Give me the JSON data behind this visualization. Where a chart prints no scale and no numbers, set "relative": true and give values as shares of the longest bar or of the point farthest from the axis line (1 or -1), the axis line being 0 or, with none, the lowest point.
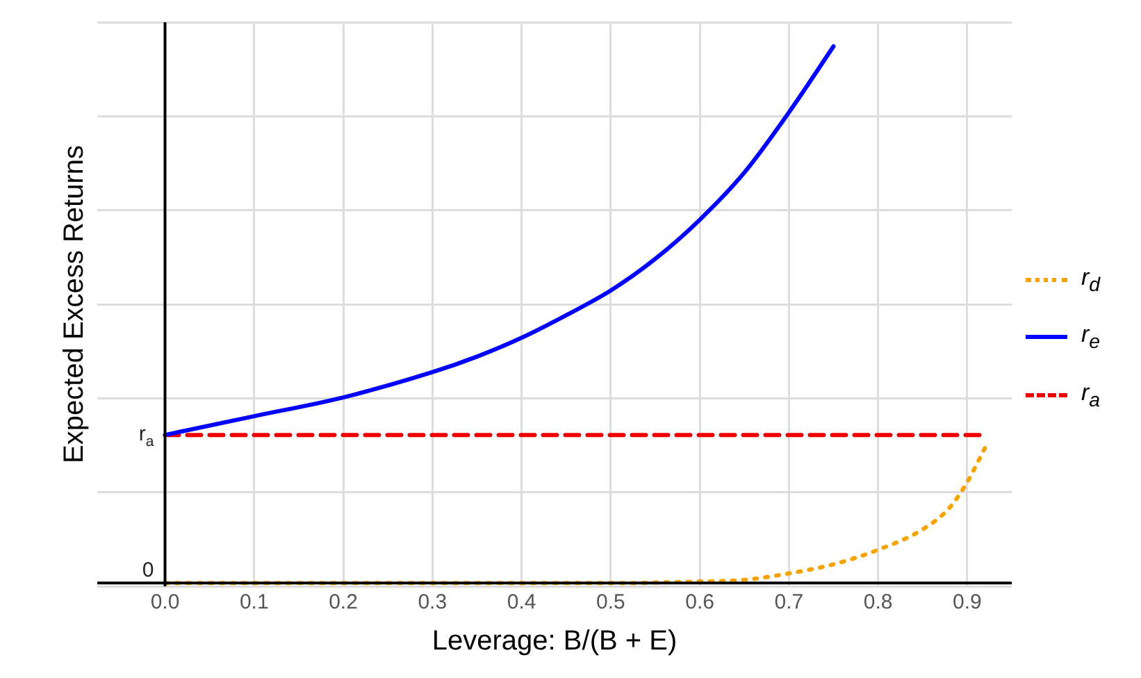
{
  "chart_data": {
    "type": "line",
    "relative": true,
    "ylabel": "Expected Excess Returns",
    "xlabel": "Leverage: B/(B + E)",
    "xlim": [
      -0.076,
      0.95
    ],
    "xticks": [
      {
        "value": 0,
        "label": "0.0"
      },
      {
        "value": 0.1,
        "label": "0.1"
      },
      {
        "value": 0.2,
        "label": "0.2"
      },
      {
        "value": 0.3,
        "label": "0.3"
      },
      {
        "value": 0.4,
        "label": "0.4"
      },
      {
        "value": 0.5,
        "label": "0.5"
      },
      {
        "value": 0.6,
        "label": "0.6"
      },
      {
        "value": 0.7,
        "label": "0.7"
      },
      {
        "value": 0.8,
        "label": "0.8"
      },
      {
        "value": 0.9,
        "label": "0.9"
      }
    ],
    "grid": true,
    "legend": "right",
    "marker": "none",
    "annotations": [
      {
        "text": "0",
        "x": 0,
        "y": 0
      },
      {
        "text": "r$_{a}$",
        "x": 0,
        "y": 0.276
      }
    ],
    "series": [
      {
        "name": "r$_{d}$",
        "color": "#f5a300",
        "line_style": "dotted",
        "x": [
          0,
          0.1,
          0.2,
          0.3,
          0.4,
          0.5,
          0.6,
          0.65,
          0.7,
          0.75,
          0.8,
          0.85,
          0.88,
          0.9,
          0.92
        ],
        "values": [
          0,
          0,
          0,
          0,
          0,
          0,
          0.003,
          0.006,
          0.018,
          0.035,
          0.062,
          0.1,
          0.14,
          0.188,
          0.252
        ]
      },
      {
        "name": "r$_{e}$",
        "color": "#0000ff",
        "line_style": "solid",
        "x": [
          0,
          0.1,
          0.2,
          0.3,
          0.35,
          0.4,
          0.45,
          0.5,
          0.55,
          0.6,
          0.65,
          0.7,
          0.75
        ],
        "values": [
          0.276,
          0.311,
          0.346,
          0.393,
          0.422,
          0.457,
          0.499,
          0.545,
          0.604,
          0.677,
          0.765,
          0.877,
          1
        ]
      },
      {
        "name": "r$_{a}$",
        "color": "#ee0000",
        "line_style": "dashed",
        "x": [
          0,
          0.92
        ],
        "values": [
          0.276,
          0.276
        ]
      }
    ]
  }
}
